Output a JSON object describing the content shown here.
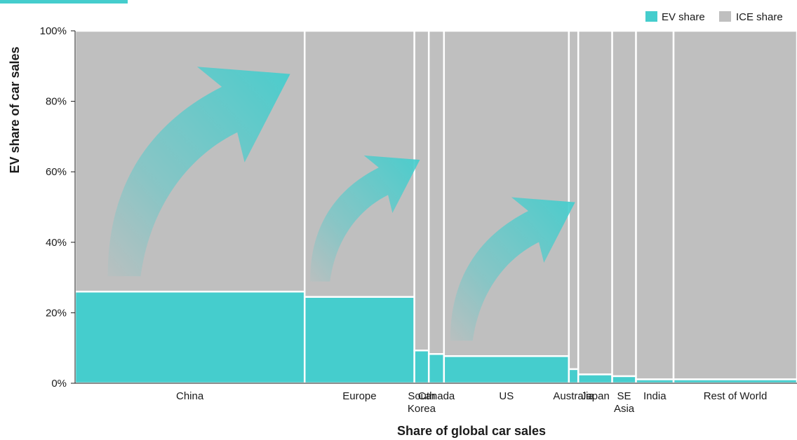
{
  "chart_data": {
    "type": "bar",
    "subtype": "marimekko",
    "xlabel": "Share of global car sales",
    "ylabel": "EV share of car sales",
    "ylim": [
      0,
      100
    ],
    "y_ticks": [
      "0%",
      "20%",
      "40%",
      "60%",
      "80%",
      "100%"
    ],
    "legend": {
      "placement": "top-right",
      "entries": [
        {
          "label": "EV share",
          "color": "#45CDCD"
        },
        {
          "label": "ICE share",
          "color": "#BFBFBF"
        }
      ]
    },
    "series": [
      {
        "name": "EV share",
        "color": "#45CDCD"
      },
      {
        "name": "ICE share",
        "color": "#BFBFBF"
      }
    ],
    "categories": [
      {
        "label": "China",
        "label_lines": [
          "China"
        ],
        "share_of_global_sales": 31.8,
        "ev_share": 26
      },
      {
        "label": "Europe",
        "label_lines": [
          "Europe"
        ],
        "share_of_global_sales": 15.2,
        "ev_share": 24.5
      },
      {
        "label": "South Korea",
        "label_lines": [
          "South",
          "Korea"
        ],
        "share_of_global_sales": 2.0,
        "ev_share": 9.3
      },
      {
        "label": "Canada",
        "label_lines": [
          "Canada"
        ],
        "share_of_global_sales": 2.1,
        "ev_share": 8.3
      },
      {
        "label": "US",
        "label_lines": [
          "US"
        ],
        "share_of_global_sales": 17.3,
        "ev_share": 7.7
      },
      {
        "label": "Australia",
        "label_lines": [
          "Australia"
        ],
        "share_of_global_sales": 1.3,
        "ev_share": 4.0
      },
      {
        "label": "Japan",
        "label_lines": [
          "Japan"
        ],
        "share_of_global_sales": 4.7,
        "ev_share": 2.5
      },
      {
        "label": "SE Asia",
        "label_lines": [
          "SE",
          "Asia"
        ],
        "share_of_global_sales": 3.3,
        "ev_share": 2.0
      },
      {
        "label": "India",
        "label_lines": [
          "India"
        ],
        "share_of_global_sales": 5.2,
        "ev_share": 1.1
      },
      {
        "label": "Rest of World",
        "label_lines": [
          "Rest of World"
        ],
        "share_of_global_sales": 17.1,
        "ev_share": 1.1
      }
    ],
    "annotations": [
      {
        "type": "arrow",
        "description": "upward-curving teal arrow",
        "over": "China"
      },
      {
        "type": "arrow",
        "description": "upward-curving teal arrow",
        "over": "Europe"
      },
      {
        "type": "arrow",
        "description": "upward-curving teal arrow",
        "over": "US"
      }
    ],
    "grid": false
  }
}
